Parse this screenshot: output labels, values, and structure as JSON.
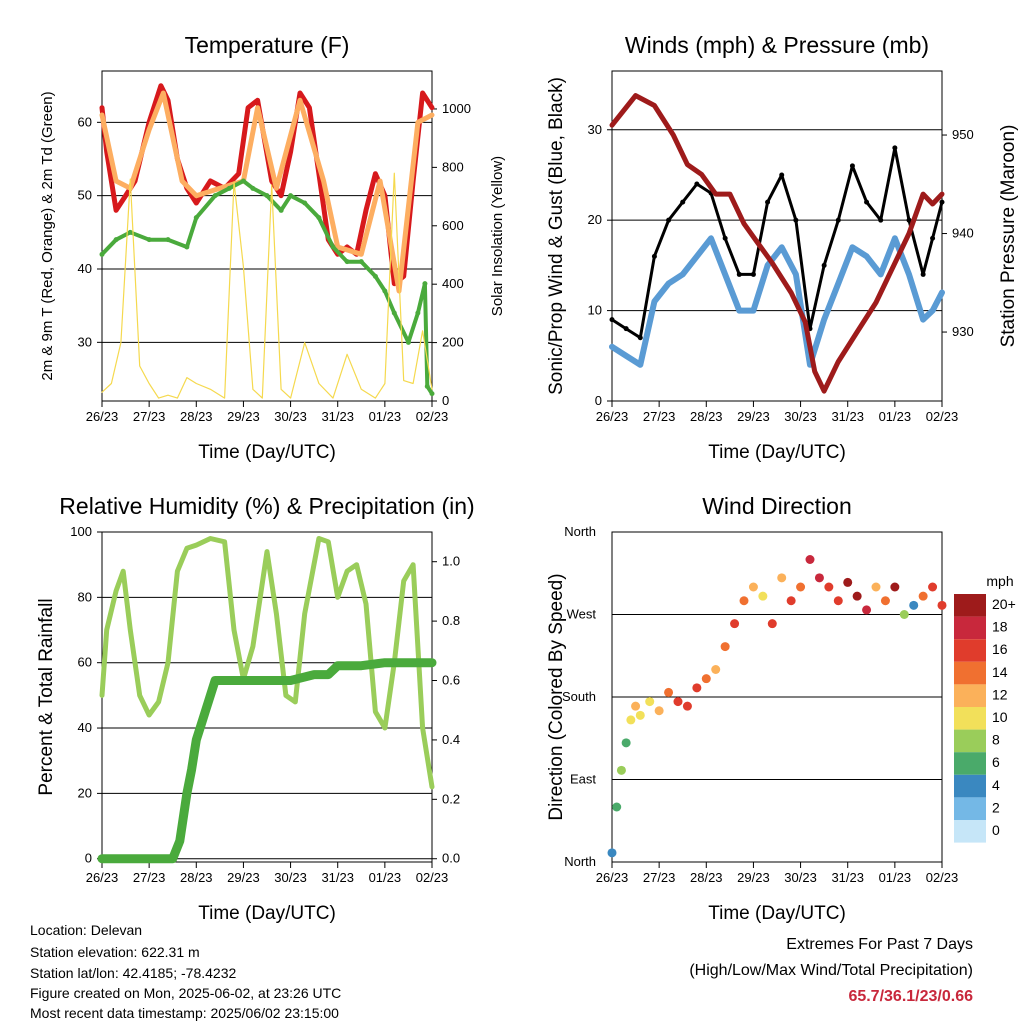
{
  "chart_data": [
    {
      "id": "temperature",
      "type": "line",
      "title": "Temperature (F)",
      "xlabel": "Time (Day/UTC)",
      "ylabel": "2m & 9m T (Red, Orange) & 2m Td (Green)",
      "ylabel_right": "Solar Insolation (Yellow)",
      "x_ticks": [
        "26/23",
        "27/23",
        "28/23",
        "29/23",
        "30/23",
        "31/23",
        "01/23",
        "02/23"
      ],
      "ylim": [
        22,
        67
      ],
      "y_ticks": [
        30,
        40,
        50,
        60
      ],
      "ylim_right": [
        0,
        1130
      ],
      "y_ticks_right": [
        0,
        200,
        400,
        600,
        800,
        1000
      ],
      "grid": "horizontal",
      "series": [
        {
          "color": "#d7191c",
          "x": [
            0,
            0.1,
            0.3,
            0.5,
            0.7,
            1.0,
            1.25,
            1.4,
            1.6,
            1.8,
            2.0,
            2.3,
            2.6,
            2.9,
            3.1,
            3.3,
            3.6,
            3.8,
            4.0,
            4.2,
            4.4,
            4.6,
            4.8,
            5.0,
            5.2,
            5.4,
            5.6,
            5.8,
            6.0,
            6.2,
            6.4,
            6.6,
            6.8,
            7.0
          ],
          "values": [
            62,
            56,
            48,
            50,
            52,
            60,
            65,
            63,
            55,
            51,
            49,
            52,
            51,
            53,
            62,
            63,
            52,
            50,
            56,
            64,
            62,
            53,
            44,
            42,
            43,
            42,
            48,
            53,
            50,
            38,
            39,
            52,
            64,
            62
          ]
        },
        {
          "color": "#fdae61",
          "x": [
            0,
            0.3,
            0.6,
            1.0,
            1.3,
            1.7,
            2.0,
            2.5,
            3.0,
            3.3,
            3.7,
            4.2,
            4.7,
            5.0,
            5.5,
            5.9,
            6.3,
            6.7,
            7.0
          ],
          "values": [
            61,
            52,
            51,
            59,
            64,
            52,
            50,
            51,
            52,
            62,
            51,
            63,
            52,
            43,
            42,
            52,
            37,
            60,
            61
          ]
        },
        {
          "color": "#4aaa3c",
          "x": [
            0,
            0.3,
            0.6,
            1.0,
            1.4,
            1.8,
            2.0,
            2.4,
            2.7,
            3.0,
            3.2,
            3.5,
            3.8,
            4.0,
            4.3,
            4.6,
            4.9,
            5.2,
            5.5,
            5.8,
            6.0,
            6.2,
            6.5,
            6.7,
            6.85,
            6.9,
            7.0
          ],
          "values": [
            42,
            44,
            45,
            44,
            44,
            43,
            47,
            50,
            51,
            52,
            51,
            50,
            48,
            50,
            49,
            47,
            43,
            41,
            41,
            39,
            37,
            34,
            30,
            34,
            38,
            24,
            23
          ]
        },
        {
          "color": "#f5d94e",
          "x": [
            0,
            0.2,
            0.4,
            0.6,
            0.8,
            1.0,
            1.2,
            1.4,
            1.6,
            1.8,
            2.0,
            2.3,
            2.6,
            2.8,
            3.0,
            3.2,
            3.4,
            3.6,
            3.8,
            4.0,
            4.3,
            4.6,
            4.9,
            5.2,
            5.5,
            5.8,
            6.0,
            6.2,
            6.4,
            6.6,
            6.8,
            7.0
          ],
          "values": [
            30,
            60,
            200,
            760,
            120,
            60,
            10,
            20,
            10,
            80,
            60,
            40,
            10,
            750,
            460,
            40,
            10,
            740,
            40,
            10,
            200,
            60,
            10,
            160,
            40,
            10,
            60,
            780,
            70,
            60,
            240,
            40
          ]
        }
      ]
    },
    {
      "id": "winds",
      "type": "line",
      "title": "Winds (mph) & Pressure (mb)",
      "xlabel": "Time (Day/UTC)",
      "ylabel": "Sonic/Prop Wind & Gust (Blue, Black)",
      "ylabel_right": "Station Pressure (Maroon)",
      "x_ticks": [
        "26/23",
        "27/23",
        "28/23",
        "29/23",
        "30/23",
        "31/23",
        "01/23",
        "02/23"
      ],
      "ylim": [
        0,
        36.5
      ],
      "y_ticks": [
        0,
        10,
        20,
        30
      ],
      "ylim_right": [
        923,
        956.5
      ],
      "y_ticks_right": [
        930,
        940,
        950
      ],
      "grid": "horizontal",
      "series": [
        {
          "color": "#5a9bd4",
          "x": [
            0,
            0.3,
            0.6,
            0.9,
            1.2,
            1.5,
            1.8,
            2.1,
            2.4,
            2.7,
            3.0,
            3.3,
            3.6,
            3.9,
            4.2,
            4.5,
            4.8,
            5.1,
            5.4,
            5.7,
            6.0,
            6.3,
            6.6,
            6.8,
            7.0
          ],
          "values": [
            6,
            5,
            4,
            11,
            13,
            14,
            16,
            18,
            14,
            10,
            10,
            15,
            17,
            14,
            4,
            9,
            13,
            17,
            16,
            14,
            18,
            14,
            9,
            10,
            12
          ]
        },
        {
          "color": "#000000",
          "x": [
            0,
            0.3,
            0.6,
            0.9,
            1.2,
            1.5,
            1.8,
            2.1,
            2.4,
            2.7,
            3.0,
            3.3,
            3.6,
            3.9,
            4.2,
            4.5,
            4.8,
            5.1,
            5.4,
            5.7,
            6.0,
            6.3,
            6.6,
            6.8,
            7.0
          ],
          "values": [
            9,
            8,
            7,
            16,
            20,
            22,
            24,
            23,
            18,
            14,
            14,
            22,
            25,
            20,
            8,
            15,
            20,
            26,
            22,
            20,
            28,
            20,
            14,
            18,
            22
          ]
        },
        {
          "color": "#9e1b1b",
          "x": [
            0,
            0.5,
            0.9,
            1.3,
            1.6,
            1.9,
            2.2,
            2.5,
            2.8,
            3.1,
            3.4,
            3.8,
            4.1,
            4.3,
            4.5,
            4.8,
            5.2,
            5.6,
            6.0,
            6.3,
            6.6,
            6.8,
            7.0
          ],
          "values": [
            951,
            954,
            953,
            950,
            947,
            946,
            944,
            944,
            941,
            939,
            937,
            934,
            931,
            926,
            924,
            927,
            930,
            933,
            937,
            940,
            944,
            943,
            944
          ]
        }
      ]
    },
    {
      "id": "humidity",
      "type": "line",
      "title": "Relative Humidity (%) & Precipitation (in)",
      "xlabel": "Time (Day/UTC)",
      "ylabel": "Percent & Total Rainfall",
      "x_ticks": [
        "26/23",
        "27/23",
        "28/23",
        "29/23",
        "30/23",
        "31/23",
        "01/23",
        "02/23"
      ],
      "ylim": [
        -1,
        100
      ],
      "y_ticks": [
        0,
        20,
        40,
        60,
        80,
        100
      ],
      "ylim_right": [
        -0.011,
        1.1
      ],
      "y_ticks_right": [
        0.0,
        0.2,
        0.4,
        0.6,
        0.8,
        1.0
      ],
      "grid": "horizontal",
      "series": [
        {
          "color": "#9acd5a",
          "x": [
            0,
            0.1,
            0.3,
            0.45,
            0.6,
            0.8,
            1.0,
            1.2,
            1.4,
            1.6,
            1.8,
            2.0,
            2.3,
            2.6,
            2.8,
            3.0,
            3.2,
            3.5,
            3.7,
            3.9,
            4.1,
            4.3,
            4.6,
            4.8,
            5.0,
            5.2,
            5.4,
            5.6,
            5.8,
            6.0,
            6.2,
            6.4,
            6.6,
            6.8,
            7.0
          ],
          "values": [
            50,
            70,
            82,
            88,
            70,
            50,
            44,
            48,
            60,
            88,
            95,
            96,
            98,
            97,
            70,
            55,
            65,
            94,
            75,
            50,
            48,
            75,
            98,
            97,
            80,
            88,
            90,
            78,
            45,
            40,
            60,
            85,
            90,
            40,
            22
          ]
        },
        {
          "color": "#4aaa3c",
          "axis": "right",
          "x": [
            0,
            0.5,
            1.0,
            1.5,
            1.65,
            1.8,
            1.9,
            2.0,
            2.1,
            2.2,
            2.3,
            2.4,
            2.6,
            3.0,
            3.5,
            4.0,
            4.5,
            4.8,
            5.0,
            5.5,
            6.0,
            6.5,
            7.0
          ],
          "values": [
            0,
            0,
            0,
            0,
            0.06,
            0.22,
            0.3,
            0.4,
            0.45,
            0.5,
            0.55,
            0.6,
            0.6,
            0.6,
            0.6,
            0.6,
            0.62,
            0.62,
            0.65,
            0.65,
            0.66,
            0.66,
            0.66
          ]
        }
      ]
    },
    {
      "id": "wind-direction",
      "type": "scatter",
      "title": "Wind Direction",
      "xlabel": "Time (Day/UTC)",
      "ylabel": "Direction (Colored By Speed)",
      "x_ticks": [
        "26/23",
        "27/23",
        "28/23",
        "29/23",
        "30/23",
        "31/23",
        "01/23",
        "02/23"
      ],
      "y_ticks": [
        "North",
        "East",
        "South",
        "West",
        "North"
      ],
      "ylim": [
        0,
        360
      ],
      "grid": "horizontal",
      "colorbar_title": "mph",
      "colorbar_labels": [
        "20+",
        "18",
        "16",
        "14",
        "12",
        "10",
        "8",
        "6",
        "4",
        "2",
        "0"
      ],
      "colorbar_colors": [
        "#9e1b1b",
        "#c8283c",
        "#e03c2c",
        "#f07030",
        "#fbb15a",
        "#f2e05a",
        "#9acd5a",
        "#4aaa6a",
        "#3a88c0",
        "#74b8e6",
        "#c6e6f8"
      ],
      "x": [
        0,
        0.1,
        0.2,
        0.3,
        0.4,
        0.5,
        0.6,
        0.8,
        1.0,
        1.2,
        1.4,
        1.6,
        1.8,
        2.0,
        2.2,
        2.4,
        2.6,
        2.8,
        3.0,
        3.2,
        3.4,
        3.6,
        3.8,
        4.0,
        4.2,
        4.4,
        4.6,
        4.8,
        5.0,
        5.2,
        5.4,
        5.6,
        5.8,
        6.0,
        6.2,
        6.4,
        6.6,
        6.8,
        7.0
      ],
      "values": [
        10,
        60,
        100,
        130,
        155,
        170,
        160,
        175,
        165,
        185,
        175,
        170,
        190,
        200,
        210,
        235,
        260,
        285,
        300,
        290,
        260,
        310,
        285,
        300,
        330,
        310,
        300,
        285,
        305,
        290,
        275,
        300,
        285,
        300,
        270,
        280,
        290,
        300,
        280
      ],
      "speeds": [
        4,
        6,
        8,
        6,
        10,
        12,
        10,
        9,
        12,
        14,
        15,
        16,
        16,
        14,
        12,
        13,
        15,
        14,
        12,
        10,
        16,
        11,
        15,
        13,
        18,
        17,
        16,
        15,
        20,
        19,
        18,
        11,
        14,
        20,
        8,
        4,
        14,
        16,
        15
      ]
    }
  ],
  "info": {
    "location": "Location: Delevan",
    "elevation": "Station elevation: 622.31 m",
    "latlon": "Station lat/lon: 42.4185; -78.4232",
    "created": "Figure created on Mon, 2025-06-02, at 23:26 UTC",
    "timestamp": "Most recent data timestamp: 2025/06/02 23:15:00"
  },
  "extremes": {
    "title": "Extremes For Past 7 Days",
    "subtitle": "(High/Low/Max Wind/Total Precipitation)",
    "values": "65.7/36.1/23/0.66"
  }
}
